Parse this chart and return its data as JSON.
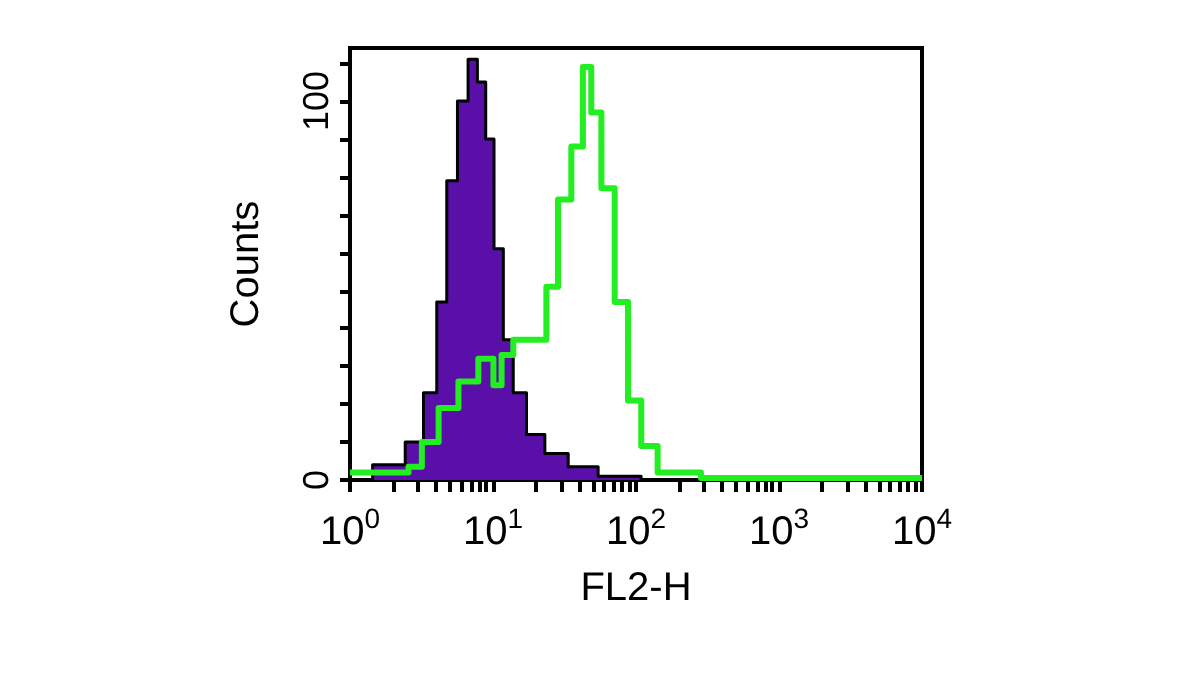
{
  "chart_data": {
    "type": "step",
    "xlabel": "FL2-H",
    "ylabel": "Counts",
    "log": "x",
    "xlim": [
      1,
      10000
    ],
    "ylim": [
      0,
      114
    ],
    "xticks": [
      {
        "value": 1,
        "label": "10$^{0}$"
      },
      {
        "value": 2,
        "label": null
      },
      {
        "value": 3,
        "label": null
      },
      {
        "value": 4,
        "label": null
      },
      {
        "value": 5,
        "label": null
      },
      {
        "value": 6,
        "label": null
      },
      {
        "value": 7,
        "label": null
      },
      {
        "value": 8,
        "label": null
      },
      {
        "value": 9,
        "label": null
      },
      {
        "value": 10,
        "label": "10$^{1}$"
      },
      {
        "value": 20,
        "label": null
      },
      {
        "value": 30,
        "label": null
      },
      {
        "value": 40,
        "label": null
      },
      {
        "value": 50,
        "label": null
      },
      {
        "value": 60,
        "label": null
      },
      {
        "value": 70,
        "label": null
      },
      {
        "value": 80,
        "label": null
      },
      {
        "value": 90,
        "label": null
      },
      {
        "value": 100,
        "label": "10$^{2}$"
      },
      {
        "value": 200,
        "label": null
      },
      {
        "value": 300,
        "label": null
      },
      {
        "value": 400,
        "label": null
      },
      {
        "value": 500,
        "label": null
      },
      {
        "value": 600,
        "label": null
      },
      {
        "value": 700,
        "label": null
      },
      {
        "value": 800,
        "label": null
      },
      {
        "value": 900,
        "label": null
      },
      {
        "value": 1000,
        "label": "10$^{3}$"
      },
      {
        "value": 2000,
        "label": null
      },
      {
        "value": 3000,
        "label": null
      },
      {
        "value": 4000,
        "label": null
      },
      {
        "value": 5000,
        "label": null
      },
      {
        "value": 6000,
        "label": null
      },
      {
        "value": 7000,
        "label": null
      },
      {
        "value": 8000,
        "label": null
      },
      {
        "value": 9000,
        "label": null
      },
      {
        "value": 10000,
        "label": "10$^{4}$"
      }
    ],
    "yticks": [
      0,
      {
        "value": 10,
        "label": null
      },
      {
        "value": 20,
        "label": null
      },
      {
        "value": 30,
        "label": null
      },
      {
        "value": 40,
        "label": null
      },
      {
        "value": 50,
        "label": null
      },
      {
        "value": 60,
        "label": null
      },
      {
        "value": 70,
        "label": null
      },
      {
        "value": 80,
        "label": null
      },
      {
        "value": 90,
        "label": null
      },
      100,
      {
        "value": 110,
        "label": null
      }
    ],
    "grid": false,
    "marker": "none",
    "series": [
      {
        "type": "area",
        "color": "#5a0fa8",
        "x": [
          1,
          2.07,
          2.86,
          3.73,
          4.38,
          5.15,
          6.18,
          7.25,
          8.34,
          9.48,
          10.9,
          12.8,
          15,
          19.6,
          27.1,
          41.6,
          71,
          166,
          10000
        ],
        "values": [
          0,
          4,
          10,
          23,
          47,
          79,
          100,
          111,
          105,
          90,
          61,
          37,
          23,
          12,
          7,
          3.5,
          1,
          0,
          0
        ]
      },
      {
        "color": "#22ee22",
        "x": [
          1,
          2.3,
          2.86,
          3.54,
          4.9,
          6.7,
          9.3,
          10.9,
          12.1,
          15.9,
          21.8,
          25.6,
          31.7,
          39.3,
          46,
          51.5,
          63.7,
          79,
          97.9,
          121,
          166,
          488,
          10000
        ],
        "values": [
          2,
          2,
          3.5,
          10,
          19,
          26,
          32,
          25,
          33,
          37,
          37,
          51,
          74,
          88,
          109,
          97,
          77,
          47,
          21,
          9,
          2,
          0.5,
          0.5
        ]
      }
    ]
  }
}
